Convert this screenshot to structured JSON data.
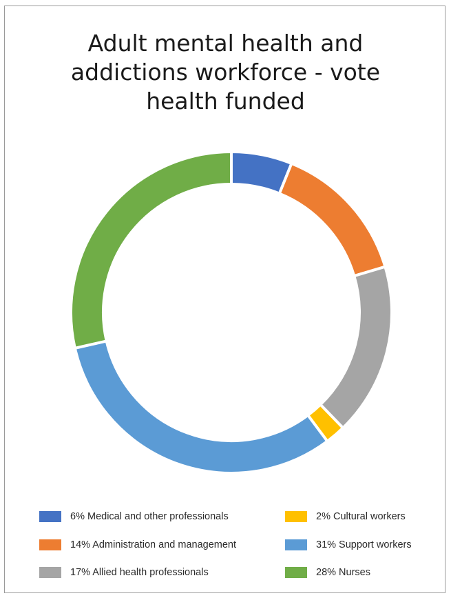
{
  "chart_data": {
    "type": "pie",
    "variant": "donut",
    "title_lines": [
      "Adult mental health and",
      "addictions workforce - vote",
      "health funded"
    ],
    "slices": [
      {
        "label": "6% Medical and other professionals",
        "value": 6,
        "color": "#4472C4"
      },
      {
        "label": "14% Administration and management",
        "value": 14,
        "color": "#ED7D31"
      },
      {
        "label": "17% Allied health professionals",
        "value": 17,
        "color": "#A5A5A5"
      },
      {
        "label": "2% Cultural workers",
        "value": 2,
        "color": "#FFC000"
      },
      {
        "label": "31% Support workers",
        "value": 31,
        "color": "#5B9BD5"
      },
      {
        "label": "28% Nurses",
        "value": 28,
        "color": "#70AD47"
      }
    ],
    "legend_position": "bottom"
  }
}
